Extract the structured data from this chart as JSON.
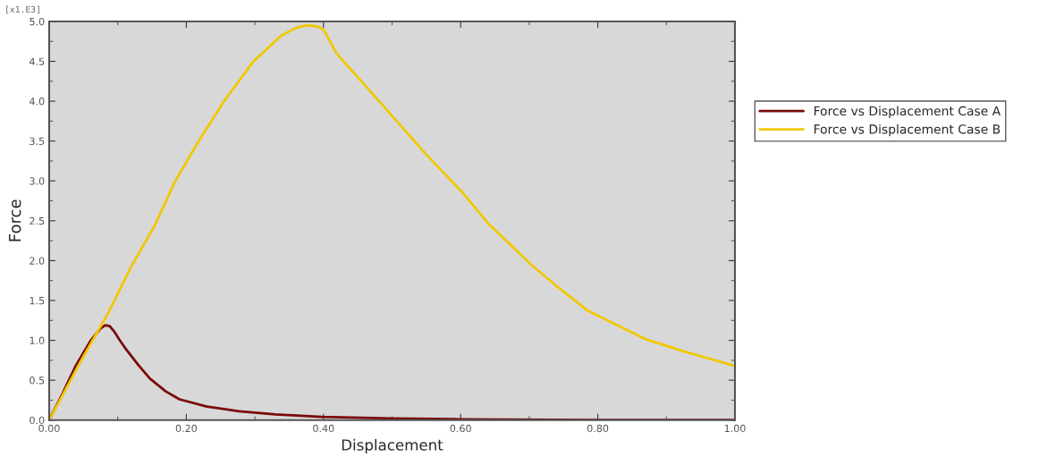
{
  "chart_data": {
    "type": "line",
    "xlabel": "Displacement",
    "ylabel": "Force",
    "annotations": [
      "[x1.E3]"
    ],
    "xlim": [
      0,
      1
    ],
    "ylim": [
      0,
      5
    ],
    "xticks": [
      {
        "value": 0,
        "label": "0.00"
      },
      {
        "value": 0.2,
        "label": "0.20"
      },
      {
        "value": 0.4,
        "label": "0.40"
      },
      {
        "value": 0.6,
        "label": "0.60"
      },
      {
        "value": 0.8,
        "label": "0.80"
      },
      {
        "value": 1.0,
        "label": "1.00"
      }
    ],
    "yticks": [
      {
        "value": 0,
        "label": "0.0"
      },
      {
        "value": 0.5,
        "label": "0.5"
      },
      {
        "value": 1.0,
        "label": "1.0"
      },
      {
        "value": 1.5,
        "label": "1.5"
      },
      {
        "value": 2.0,
        "label": "2.0"
      },
      {
        "value": 2.5,
        "label": "2.5"
      },
      {
        "value": 3.0,
        "label": "3.0"
      },
      {
        "value": 3.5,
        "label": "3.5"
      },
      {
        "value": 4.0,
        "label": "4.0"
      },
      {
        "value": 4.5,
        "label": "4.5"
      },
      {
        "value": 5.0,
        "label": "5.0"
      }
    ],
    "grid": false,
    "legend": "right",
    "marker": "none",
    "line_style": "solid",
    "series": [
      {
        "name": "Force vs Displacement Case A",
        "color": "#7a0a0a",
        "x": [
          0,
          0.02,
          0.038,
          0.06,
          0.075,
          0.082,
          0.088,
          0.094,
          0.103,
          0.112,
          0.13,
          0.147,
          0.17,
          0.19,
          0.23,
          0.277,
          0.33,
          0.398,
          0.5,
          0.6,
          0.8,
          1.0
        ],
        "values": [
          0,
          0.34,
          0.67,
          0.99,
          1.15,
          1.19,
          1.18,
          1.12,
          1.0,
          0.89,
          0.69,
          0.52,
          0.36,
          0.26,
          0.17,
          0.11,
          0.07,
          0.04,
          0.02,
          0.01,
          0.0,
          0.0
        ]
      },
      {
        "name": "Force vs Displacement Case B",
        "color": "#f0c800",
        "x": [
          0,
          0.05,
          0.086,
          0.12,
          0.155,
          0.184,
          0.218,
          0.255,
          0.298,
          0.338,
          0.36,
          0.375,
          0.39,
          0.4,
          0.419,
          0.477,
          0.55,
          0.6,
          0.641,
          0.704,
          0.74,
          0.784,
          0.871,
          0.93,
          1.0
        ],
        "values": [
          0,
          0.8,
          1.34,
          1.93,
          2.46,
          3.0,
          3.5,
          4.0,
          4.5,
          4.82,
          4.92,
          4.95,
          4.94,
          4.9,
          4.6,
          4.04,
          3.33,
          2.88,
          2.46,
          1.94,
          1.68,
          1.38,
          1.01,
          0.85,
          0.68
        ]
      }
    ]
  }
}
